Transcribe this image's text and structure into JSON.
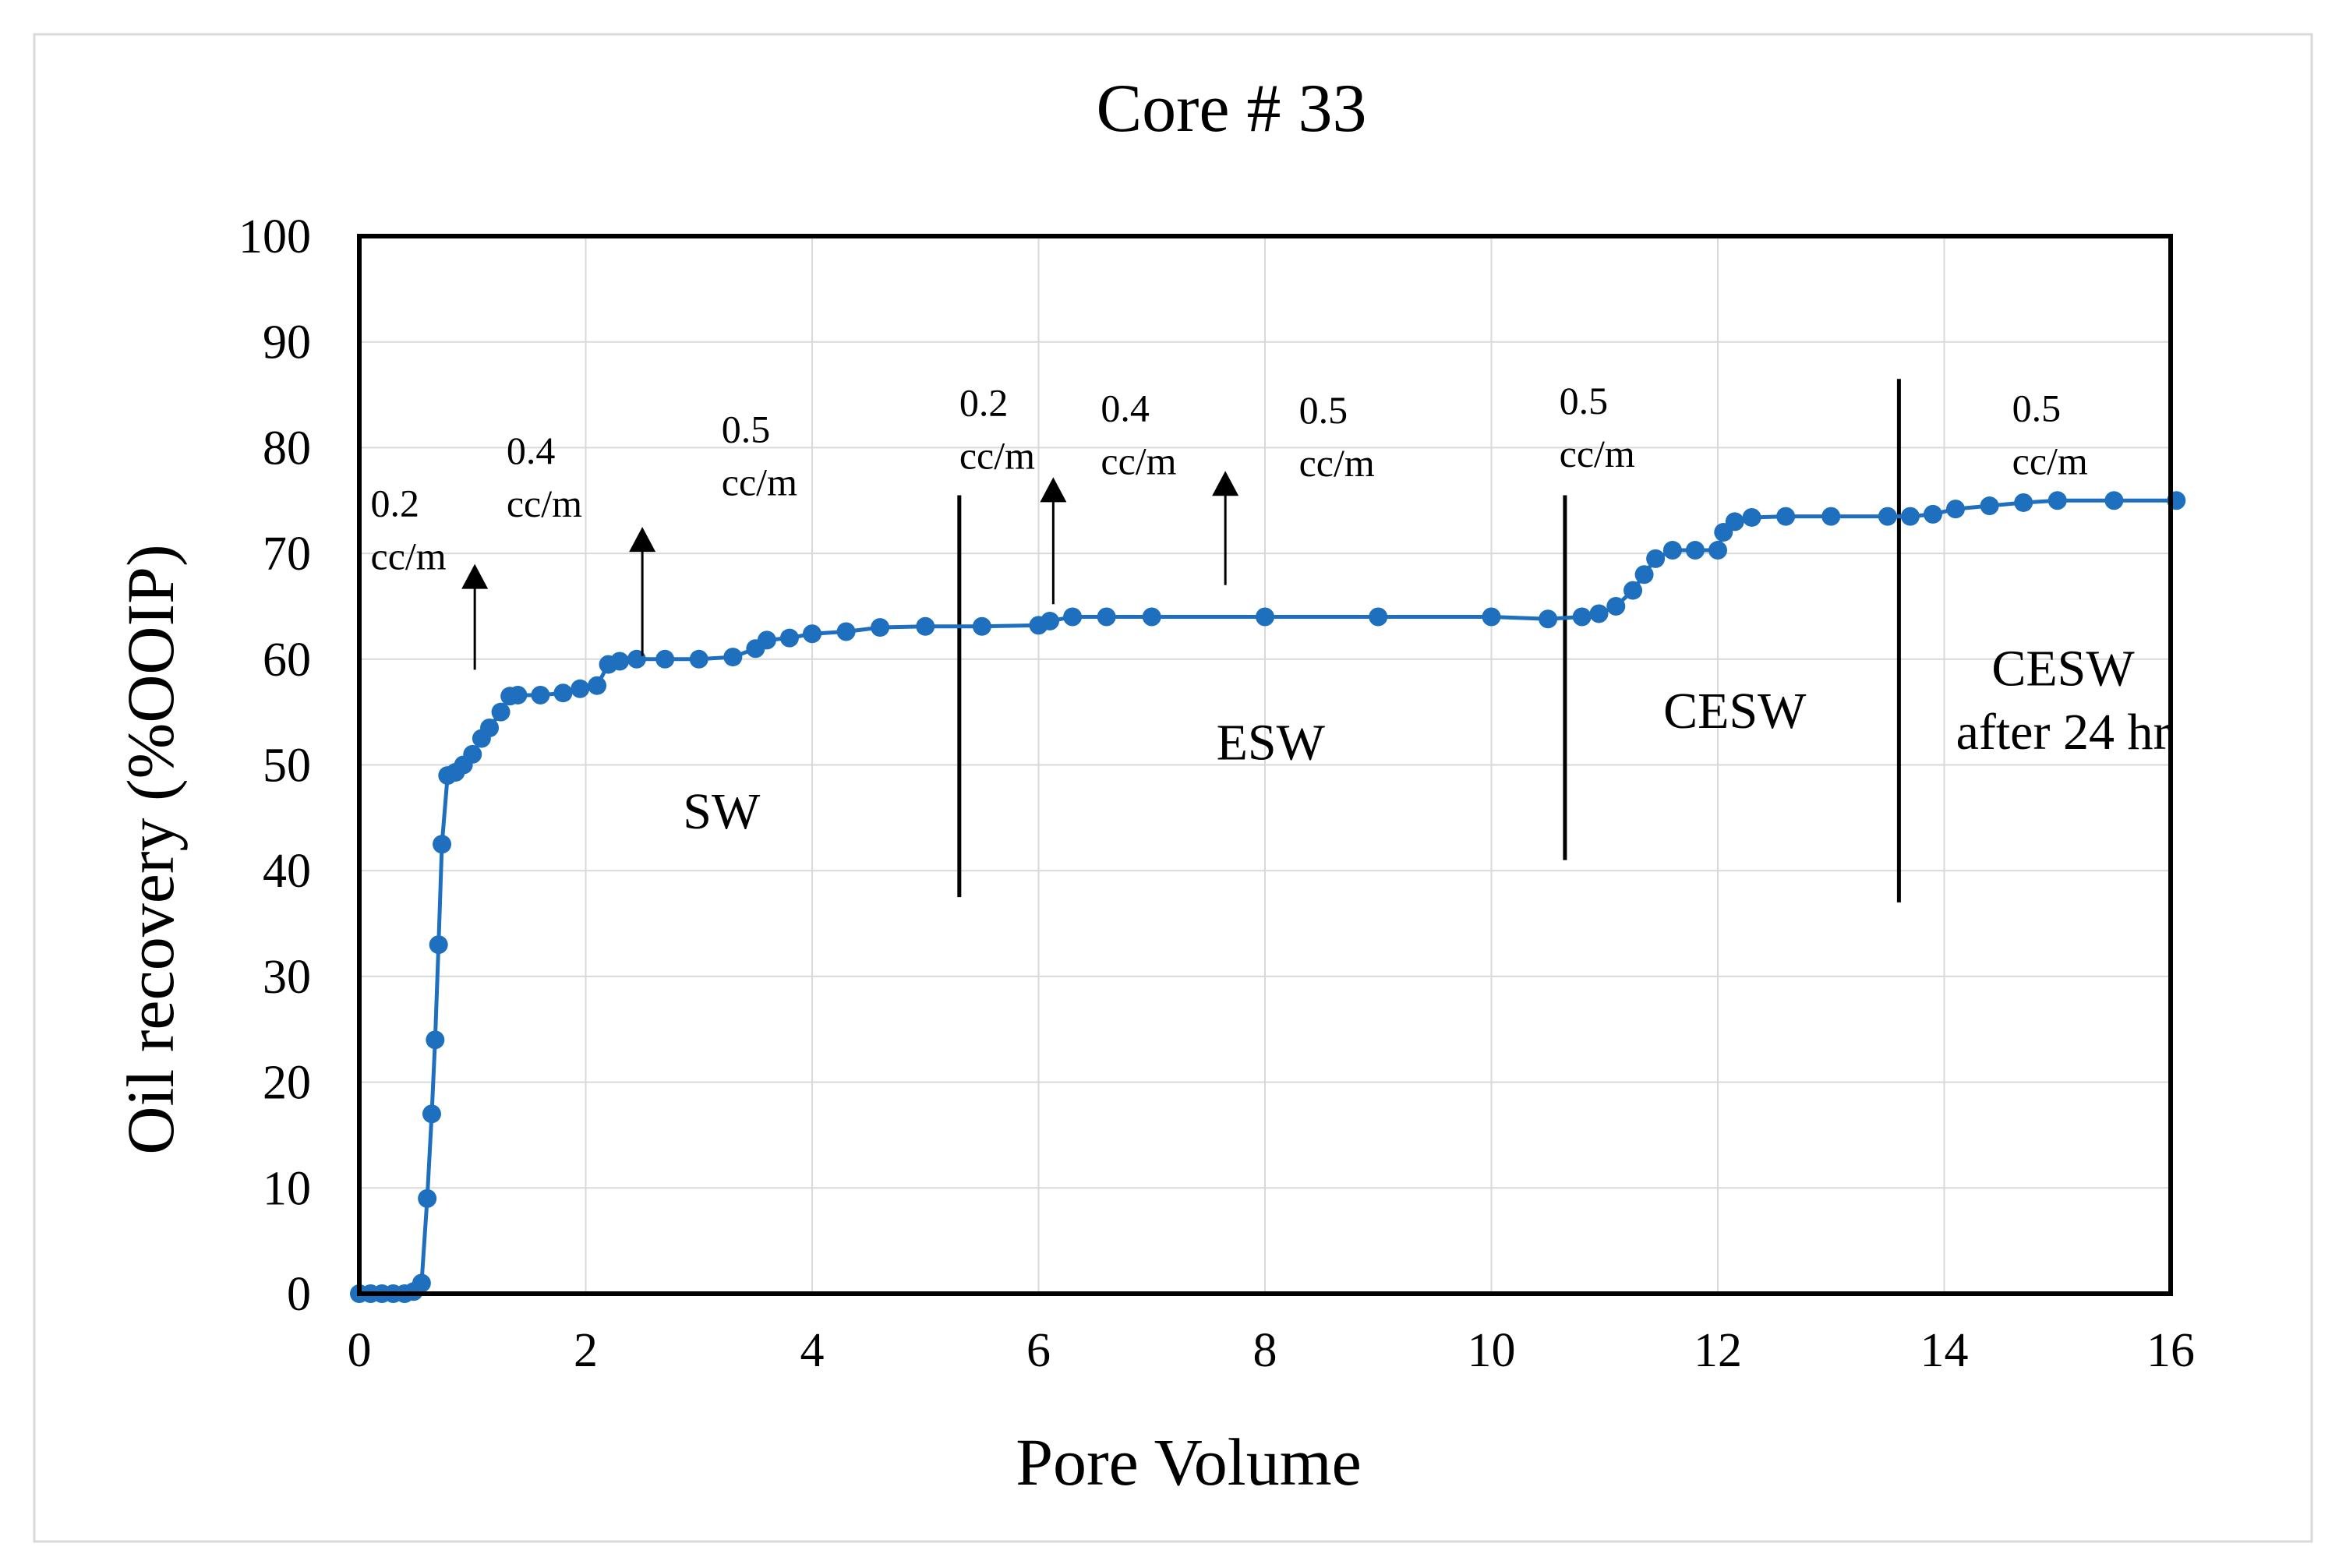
{
  "chart_data": {
    "type": "line",
    "title": "Core # 33",
    "xlabel": "Pore Volume",
    "ylabel": "Oil recovery (%OOIP)",
    "xlim": [
      0,
      16
    ],
    "ylim": [
      0,
      100
    ],
    "xticks": [
      0,
      2,
      4,
      6,
      8,
      10,
      12,
      14,
      16
    ],
    "yticks": [
      0,
      10,
      20,
      30,
      40,
      50,
      60,
      70,
      80,
      90,
      100
    ],
    "grid": true,
    "series_color": "#1f6fbf",
    "series": [
      {
        "name": "Oil recovery",
        "x": [
          0,
          0.1,
          0.2,
          0.3,
          0.4,
          0.48,
          0.55,
          0.6,
          0.64,
          0.67,
          0.7,
          0.73,
          0.78,
          0.85,
          0.92,
          1.0,
          1.08,
          1.15,
          1.25,
          1.33,
          1.4,
          1.6,
          1.8,
          1.95,
          2.1,
          2.2,
          2.3,
          2.45,
          2.7,
          3.0,
          3.3,
          3.5,
          3.6,
          3.8,
          4.0,
          4.3,
          4.6,
          5.0,
          5.5,
          6.0,
          6.1,
          6.3,
          6.6,
          7.0,
          8.0,
          9.0,
          10.0,
          10.5,
          10.8,
          10.95,
          11.1,
          11.25,
          11.35,
          11.45,
          11.6,
          11.8,
          12.0,
          12.05,
          12.15,
          12.3,
          12.6,
          13.0,
          13.5,
          13.7,
          13.9,
          14.1,
          14.4,
          14.7,
          15.0,
          15.5,
          16.05
        ],
        "y": [
          0,
          0,
          0,
          0,
          0,
          0.2,
          1,
          9,
          17,
          24,
          33,
          42.5,
          49,
          49.3,
          50,
          51,
          52.5,
          53.5,
          55,
          56.5,
          56.6,
          56.6,
          56.8,
          57.2,
          57.5,
          59.5,
          59.8,
          60,
          60,
          60,
          60.2,
          61,
          61.8,
          62,
          62.4,
          62.6,
          63,
          63.1,
          63.1,
          63.2,
          63.6,
          64,
          64,
          64,
          64,
          64,
          64,
          63.8,
          64,
          64.3,
          65,
          66.5,
          68,
          69.5,
          70.3,
          70.3,
          70.3,
          72,
          73,
          73.4,
          73.5,
          73.5,
          73.5,
          73.5,
          73.7,
          74.2,
          74.5,
          74.8,
          75,
          75,
          75
        ]
      }
    ],
    "phase_dividers_x": [
      5.3,
      10.65,
      13.6
    ],
    "phase_labels": [
      {
        "text": "SW",
        "x": 3.2,
        "y": 44
      },
      {
        "text": "ESW",
        "x": 8.05,
        "y": 50.5
      },
      {
        "text": "CESW",
        "x": 12.15,
        "y": 53.5
      },
      {
        "text": "CESW",
        "x": 15.05,
        "y": 57.5
      },
      {
        "text": "after 24 hr",
        "x": 15.05,
        "y": 51.5
      }
    ],
    "rate_labels": [
      {
        "rate": "0.2",
        "unit": "cc/m",
        "x": 0.1,
        "y": 73.5
      },
      {
        "rate": "0.4",
        "unit": "cc/m",
        "x": 1.3,
        "y": 78.5
      },
      {
        "rate": "0.5",
        "unit": "cc/m",
        "x": 3.2,
        "y": 80.5
      },
      {
        "rate": "0.2",
        "unit": "cc/m",
        "x": 5.3,
        "y": 83
      },
      {
        "rate": "0.4",
        "unit": "cc/m",
        "x": 6.55,
        "y": 82.5
      },
      {
        "rate": "0.5",
        "unit": "cc/m",
        "x": 8.3,
        "y": 82.3
      },
      {
        "rate": "0.5",
        "unit": "cc/m",
        "x": 10.6,
        "y": 83.2
      },
      {
        "rate": "0.5",
        "unit": "cc/m",
        "x": 14.6,
        "y": 82.5
      }
    ],
    "arrows": [
      {
        "x": 1.02,
        "y_from": 59,
        "y_to": 69
      },
      {
        "x": 2.5,
        "y_from": 60.3,
        "y_to": 72.5
      },
      {
        "x": 6.13,
        "y_from": 65.2,
        "y_to": 77.2
      },
      {
        "x": 7.65,
        "y_from": 67,
        "y_to": 77.8
      }
    ]
  }
}
